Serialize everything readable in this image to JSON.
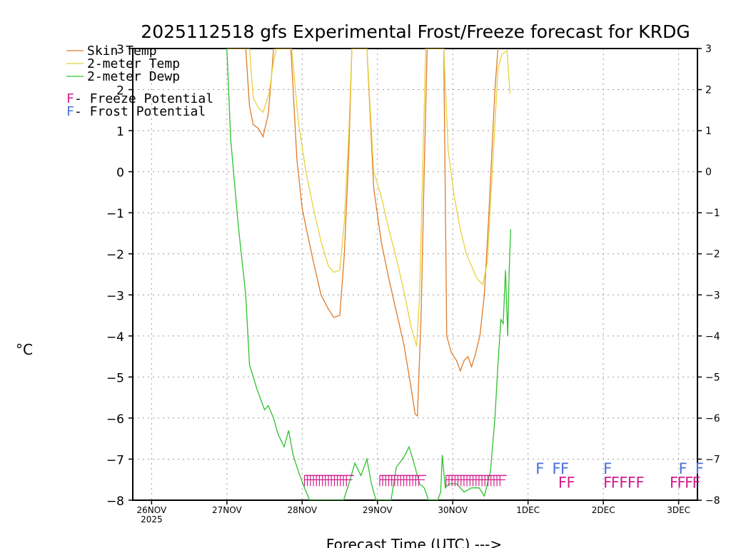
{
  "chart_data": {
    "type": "line",
    "title": "2025112518 gfs Experimental Frost/Freeze forecast for KRDG",
    "xlabel": "Forecast Time (UTC) --->",
    "ylabel": "°C",
    "ylim": [
      -8,
      3
    ],
    "xlim": [
      -0.25,
      7.25
    ],
    "yticks": [
      3,
      2,
      1,
      0,
      -1,
      -2,
      -3,
      -4,
      -5,
      -6,
      -7,
      -8
    ],
    "ytick_labels": [
      "3",
      "2",
      "1",
      "0",
      "−1",
      "−2",
      "−3",
      "−4",
      "−5",
      "−6",
      "−7",
      "−8"
    ],
    "right_ytick_labels": [
      "3",
      "2",
      "1",
      "0",
      "−1",
      "−2",
      "−3",
      "−4",
      "−5",
      "−6",
      "−7",
      "−8"
    ],
    "xticks": [
      {
        "x": 0,
        "label": "26NOV",
        "sub": "2025"
      },
      {
        "x": 1,
        "label": "27NOV",
        "sub": ""
      },
      {
        "x": 2,
        "label": "28NOV",
        "sub": ""
      },
      {
        "x": 3,
        "label": "29NOV",
        "sub": ""
      },
      {
        "x": 4,
        "label": "30NOV",
        "sub": ""
      },
      {
        "x": 5,
        "label": "1DEC",
        "sub": ""
      },
      {
        "x": 6,
        "label": "2DEC",
        "sub": ""
      },
      {
        "x": 7,
        "label": "3DEC",
        "sub": ""
      }
    ],
    "grid": true,
    "legend": [
      {
        "label": "Skin Temp",
        "color": "#e07b2a"
      },
      {
        "label": "2-meter Temp",
        "color": "#e8d23a"
      },
      {
        "label": "2-meter Dewp",
        "color": "#2ec22e"
      }
    ],
    "potential_legend": [
      {
        "symbol": "F",
        "label": " - Freeze Potential",
        "color": "#d21e8c"
      },
      {
        "symbol": "F",
        "label": " - Frost Potential",
        "color": "#4a6ed8"
      }
    ],
    "series": [
      {
        "name": "Skin Temp",
        "color": "#e07b2a",
        "points": [
          [
            1.0,
            3.0
          ],
          [
            1.25,
            3.0
          ],
          [
            1.3,
            1.6
          ],
          [
            1.35,
            1.15
          ],
          [
            1.42,
            1.05
          ],
          [
            1.48,
            0.85
          ],
          [
            1.55,
            1.4
          ],
          [
            1.6,
            2.5
          ],
          [
            1.62,
            3.0
          ],
          [
            1.85,
            3.0
          ],
          [
            1.93,
            0.3
          ],
          [
            2.0,
            -0.9
          ],
          [
            2.08,
            -1.6
          ],
          [
            2.15,
            -2.2
          ],
          [
            2.25,
            -3.0
          ],
          [
            2.35,
            -3.35
          ],
          [
            2.42,
            -3.55
          ],
          [
            2.5,
            -3.5
          ],
          [
            2.56,
            -2.0
          ],
          [
            2.62,
            0.5
          ],
          [
            2.66,
            3.0
          ],
          [
            2.86,
            3.0
          ],
          [
            2.95,
            -0.4
          ],
          [
            3.05,
            -1.7
          ],
          [
            3.15,
            -2.6
          ],
          [
            3.25,
            -3.4
          ],
          [
            3.35,
            -4.2
          ],
          [
            3.45,
            -5.3
          ],
          [
            3.5,
            -5.9
          ],
          [
            3.53,
            -5.95
          ],
          [
            3.58,
            -3.5
          ],
          [
            3.62,
            0.0
          ],
          [
            3.66,
            3.0
          ],
          [
            3.88,
            3.0
          ],
          [
            3.92,
            -4.0
          ],
          [
            3.98,
            -4.4
          ],
          [
            4.05,
            -4.6
          ],
          [
            4.1,
            -4.85
          ],
          [
            4.15,
            -4.6
          ],
          [
            4.2,
            -4.5
          ],
          [
            4.25,
            -4.75
          ],
          [
            4.3,
            -4.45
          ],
          [
            4.36,
            -4.0
          ],
          [
            4.42,
            -3.0
          ],
          [
            4.48,
            -1.0
          ],
          [
            4.52,
            0.5
          ],
          [
            4.56,
            2.0
          ],
          [
            4.6,
            3.0
          ]
        ]
      },
      {
        "name": "2-meter Temp",
        "color": "#e8d23a",
        "points": [
          [
            1.0,
            3.0
          ],
          [
            1.3,
            3.0
          ],
          [
            1.35,
            1.8
          ],
          [
            1.42,
            1.55
          ],
          [
            1.48,
            1.45
          ],
          [
            1.56,
            1.9
          ],
          [
            1.62,
            2.7
          ],
          [
            1.66,
            3.0
          ],
          [
            1.86,
            3.0
          ],
          [
            1.95,
            1.2
          ],
          [
            2.05,
            0.0
          ],
          [
            2.15,
            -0.9
          ],
          [
            2.25,
            -1.7
          ],
          [
            2.35,
            -2.3
          ],
          [
            2.42,
            -2.45
          ],
          [
            2.5,
            -2.4
          ],
          [
            2.56,
            -1.2
          ],
          [
            2.62,
            1.0
          ],
          [
            2.66,
            3.0
          ],
          [
            2.86,
            3.0
          ],
          [
            2.95,
            0.0
          ],
          [
            3.05,
            -0.6
          ],
          [
            3.15,
            -1.4
          ],
          [
            3.25,
            -2.1
          ],
          [
            3.35,
            -2.9
          ],
          [
            3.45,
            -3.8
          ],
          [
            3.52,
            -4.25
          ],
          [
            3.56,
            -3.0
          ],
          [
            3.6,
            0.0
          ],
          [
            3.64,
            3.0
          ],
          [
            3.88,
            3.0
          ],
          [
            3.94,
            0.5
          ],
          [
            4.02,
            -0.6
          ],
          [
            4.1,
            -1.4
          ],
          [
            4.18,
            -2.0
          ],
          [
            4.25,
            -2.3
          ],
          [
            4.32,
            -2.6
          ],
          [
            4.4,
            -2.75
          ],
          [
            4.46,
            -2.2
          ],
          [
            4.5,
            -0.8
          ],
          [
            4.55,
            0.8
          ],
          [
            4.6,
            2.5
          ],
          [
            4.65,
            2.85
          ],
          [
            4.72,
            2.95
          ],
          [
            4.76,
            1.9
          ]
        ]
      },
      {
        "name": "2-meter Dewp",
        "color": "#2ec22e",
        "points": [
          [
            1.0,
            3.0
          ],
          [
            1.05,
            0.8
          ],
          [
            1.15,
            -1.3
          ],
          [
            1.25,
            -3.0
          ],
          [
            1.3,
            -4.7
          ],
          [
            1.4,
            -5.3
          ],
          [
            1.5,
            -5.8
          ],
          [
            1.55,
            -5.7
          ],
          [
            1.62,
            -6.0
          ],
          [
            1.68,
            -6.4
          ],
          [
            1.76,
            -6.7
          ],
          [
            1.82,
            -6.3
          ],
          [
            1.88,
            -6.9
          ],
          [
            1.95,
            -7.3
          ],
          [
            2.02,
            -7.65
          ],
          [
            2.1,
            -8.0
          ],
          [
            2.55,
            -8.0
          ],
          [
            2.62,
            -7.6
          ],
          [
            2.7,
            -7.1
          ],
          [
            2.78,
            -7.4
          ],
          [
            2.86,
            -7.0
          ],
          [
            2.92,
            -7.6
          ],
          [
            2.98,
            -8.0
          ],
          [
            3.18,
            -8.0
          ],
          [
            3.25,
            -7.2
          ],
          [
            3.35,
            -6.95
          ],
          [
            3.42,
            -6.7
          ],
          [
            3.5,
            -7.2
          ],
          [
            3.56,
            -7.6
          ],
          [
            3.62,
            -7.7
          ],
          [
            3.68,
            -8.0
          ],
          [
            3.8,
            -8.0
          ],
          [
            3.84,
            -7.8
          ],
          [
            3.86,
            -6.9
          ],
          [
            3.9,
            -7.7
          ],
          [
            3.95,
            -7.6
          ],
          [
            4.05,
            -7.6
          ],
          [
            4.15,
            -7.8
          ],
          [
            4.25,
            -7.7
          ],
          [
            4.35,
            -7.7
          ],
          [
            4.42,
            -7.9
          ],
          [
            4.5,
            -7.3
          ],
          [
            4.56,
            -6.0
          ],
          [
            4.6,
            -4.7
          ],
          [
            4.64,
            -3.6
          ],
          [
            4.67,
            -3.7
          ],
          [
            4.7,
            -2.4
          ],
          [
            4.73,
            -4.0
          ],
          [
            4.75,
            -2.4
          ],
          [
            4.77,
            -1.4
          ]
        ]
      }
    ],
    "freeze_potential": {
      "color": "#d21e8c",
      "y": -7.52,
      "text_positions": [
        4.52,
        5.0,
        5.12,
        5.14,
        5.19,
        5.22,
        5.24,
        5.27,
        5.3,
        5.34,
        5.36,
        5.38,
        5.4,
        5.42,
        5.43,
        5.46,
        5.51,
        5.56,
        5.61,
        5.66,
        5.71,
        5.78,
        5.83,
        5.88
      ],
      "text": [
        "F",
        "F",
        "F",
        "F",
        "F",
        "F",
        "F",
        "F",
        "F",
        "F",
        "F"
      ],
      "text_x": [
        5.4,
        5.51,
        6.0,
        6.1,
        6.21,
        6.32,
        6.43,
        6.88,
        6.98,
        7.08,
        7.18
      ],
      "hatch_ranges": [
        [
          2.03,
          2.62
        ],
        [
          3.03,
          3.58
        ],
        [
          3.91,
          4.65
        ]
      ]
    },
    "frost_potential": {
      "color": "#4a6ed8",
      "y": -7.22,
      "text": [
        "F",
        "F",
        "F",
        "F",
        "F",
        "F"
      ],
      "text_x": [
        5.1,
        5.32,
        5.43,
        6.0,
        7.0,
        7.22
      ]
    }
  }
}
